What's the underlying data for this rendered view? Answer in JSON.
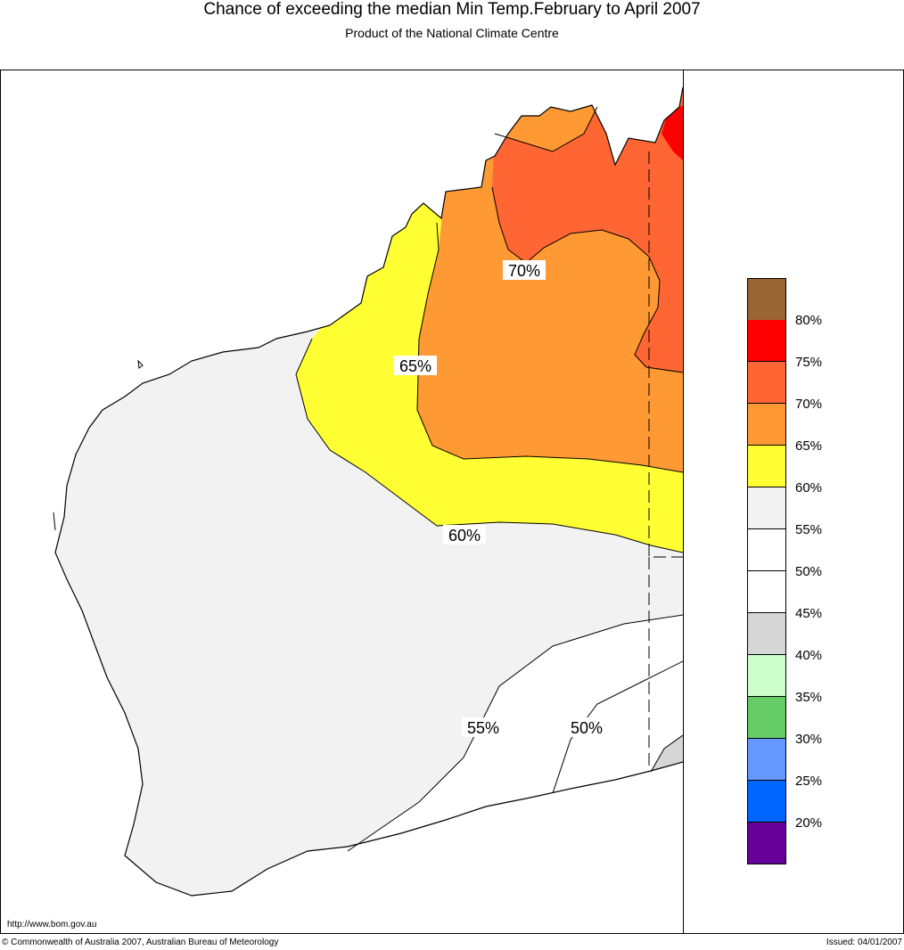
{
  "header": {
    "title": "Chance of exceeding the median Min Temp.February to April 2007",
    "subtitle": "Product of the National Climate Centre"
  },
  "map": {
    "contour_labels": [
      "70%",
      "65%",
      "60%",
      "55%",
      "50%"
    ],
    "region_colors": {
      "above_75": "#ff0000",
      "p70_75": "#ff6633",
      "p65_70": "#ff9933",
      "p60_65": "#ffff33",
      "p55_60": "#f2f2f2",
      "p50_55": "#ffffff",
      "p40_45": "#d6d6d6"
    }
  },
  "legend": {
    "swatches": [
      {
        "color": "#996633"
      },
      {
        "color": "#ff0000"
      },
      {
        "color": "#ff6633"
      },
      {
        "color": "#ff9933"
      },
      {
        "color": "#ffff33"
      },
      {
        "color": "#f2f2f2"
      },
      {
        "color": "#ffffff"
      },
      {
        "color": "#ffffff"
      },
      {
        "color": "#d6d6d6"
      },
      {
        "color": "#ccffcc"
      },
      {
        "color": "#66cc66"
      },
      {
        "color": "#6699ff"
      },
      {
        "color": "#0066ff"
      },
      {
        "color": "#660099"
      }
    ],
    "labels": [
      "80%",
      "75%",
      "70%",
      "65%",
      "60%",
      "55%",
      "50%",
      "45%",
      "40%",
      "35%",
      "30%",
      "25%",
      "20%"
    ]
  },
  "footer": {
    "url": "http://www.bom.gov.au",
    "copyright": "© Commonwealth of Australia 2007, Australian Bureau of Meteorology",
    "issued": "Issued: 04/01/2007"
  }
}
